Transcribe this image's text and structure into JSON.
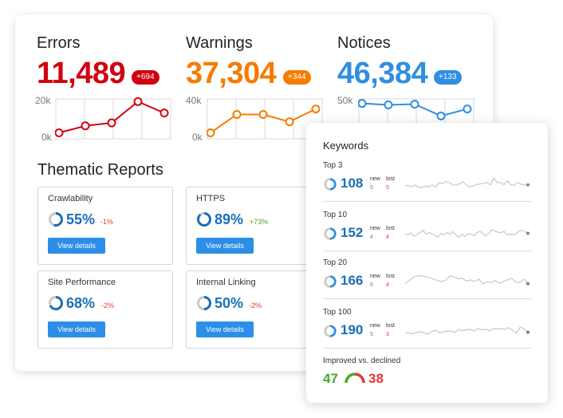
{
  "colors": {
    "errors": "#d0020f",
    "warnings": "#f57c00",
    "notices": "#2f8ee3",
    "blue_text": "#1a6fb8",
    "button": "#2c8ee8",
    "green": "#45a82e",
    "red": "#e53935"
  },
  "metrics": [
    {
      "title": "Errors",
      "value": "11,489",
      "delta": "+694",
      "axis_top": "20k",
      "axis_bottom": "0k",
      "trend": [
        0.12,
        0.31,
        0.39,
        0.97,
        0.66
      ]
    },
    {
      "title": "Warnings",
      "value": "37,304",
      "delta": "+344",
      "axis_top": "40k",
      "axis_bottom": "0k",
      "trend": [
        0.12,
        0.62,
        0.62,
        0.42,
        0.77
      ]
    },
    {
      "title": "Notices",
      "value": "46,384",
      "delta": "+133",
      "axis_top": "50k",
      "trend": [
        0.92,
        0.88,
        0.9,
        0.58,
        0.77
      ]
    }
  ],
  "thematic": {
    "title": "Thematic Reports",
    "button_label": "View details",
    "cards": [
      {
        "name": "Crawlability",
        "percent": "55%",
        "change": "-1%",
        "value": 55,
        "trend": "down"
      },
      {
        "name": "HTTPS",
        "percent": "89%",
        "change": "+73%",
        "value": 89,
        "trend": "up"
      },
      {
        "name": "Site Performance",
        "percent": "68%",
        "change": "-2%",
        "value": 68,
        "trend": "down"
      },
      {
        "name": "Internal Linking",
        "percent": "50%",
        "change": "-2%",
        "value": 50,
        "trend": "down"
      }
    ]
  },
  "keywords": {
    "title": "Keywords",
    "new_label": "new",
    "lost_label": "lost",
    "rows": [
      {
        "label": "Top 3",
        "value": "108",
        "new": "5",
        "lost": "5",
        "end_dot": "gray",
        "spark": [
          0.47,
          0.42,
          0.38,
          0.46,
          0.35,
          0.35,
          0.42,
          0.38,
          0.47,
          0.36,
          0.58,
          0.52,
          0.64,
          0.58,
          0.47,
          0.46,
          0.52,
          0.62,
          0.44,
          0.38,
          0.42,
          0.48,
          0.52,
          0.55,
          0.58,
          0.47,
          0.8,
          0.58,
          0.58,
          0.48,
          0.67,
          0.46,
          0.46,
          0.59,
          0.5,
          0.48,
          0.47
        ]
      },
      {
        "label": "Top 10",
        "value": "152",
        "new": "4",
        "lost": "4",
        "end_dot": "gray",
        "spark": [
          0.48,
          0.44,
          0.54,
          0.38,
          0.46,
          0.56,
          0.67,
          0.47,
          0.56,
          0.48,
          0.42,
          0.34,
          0.52,
          0.44,
          0.56,
          0.48,
          0.6,
          0.44,
          0.33,
          0.48,
          0.36,
          0.5,
          0.48,
          0.4,
          0.55,
          0.62,
          0.5,
          0.4,
          0.54,
          0.7,
          0.62,
          0.58,
          0.55,
          0.62,
          0.44,
          0.48,
          0.44,
          0.48,
          0.62,
          0.67,
          0.58,
          0.52
        ]
      },
      {
        "label": "Top 20",
        "value": "166",
        "new": "6",
        "lost": "4",
        "end_dot": "green",
        "spark": [
          0.4,
          0.55,
          0.7,
          0.78,
          0.78,
          0.74,
          0.7,
          0.62,
          0.54,
          0.5,
          0.58,
          0.78,
          0.72,
          0.64,
          0.66,
          0.52,
          0.58,
          0.5,
          0.62,
          0.4,
          0.48,
          0.46,
          0.56,
          0.42,
          0.5,
          0.58,
          0.66,
          0.48,
          0.46,
          0.62,
          0.4
        ]
      },
      {
        "label": "Top 100",
        "value": "190",
        "new": "5",
        "lost": "3",
        "end_dot": "green",
        "spark": [
          0.42,
          0.4,
          0.36,
          0.44,
          0.46,
          0.4,
          0.36,
          0.48,
          0.54,
          0.42,
          0.46,
          0.5,
          0.48,
          0.44,
          0.58,
          0.52,
          0.56,
          0.58,
          0.5,
          0.62,
          0.56,
          0.58,
          0.5,
          0.62,
          0.6,
          0.62,
          0.58,
          0.66,
          0.54,
          0.38,
          0.7,
          0.6,
          0.44
        ]
      }
    ],
    "improved_label": "Improved vs. declined",
    "improved": "47",
    "declined": "38"
  }
}
